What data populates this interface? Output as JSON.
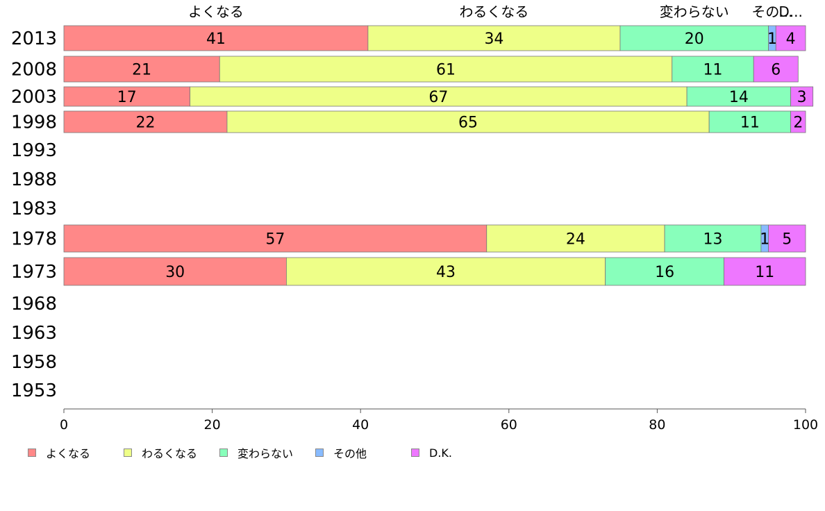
{
  "chart_data": {
    "type": "bar",
    "orientation": "horizontal",
    "stacked": true,
    "categories": [
      "2013",
      "2008",
      "2003",
      "1998",
      "1993",
      "1988",
      "1983",
      "1978",
      "1973",
      "1968",
      "1963",
      "1958",
      "1953"
    ],
    "series": [
      {
        "name": "よくなる",
        "color": "#FF8888",
        "values": [
          41,
          21,
          17,
          22,
          null,
          null,
          null,
          57,
          30,
          null,
          null,
          null,
          null
        ]
      },
      {
        "name": "わるくなる",
        "color": "#EEFF88",
        "values": [
          34,
          61,
          67,
          65,
          null,
          null,
          null,
          24,
          43,
          null,
          null,
          null,
          null
        ]
      },
      {
        "name": "変わらない",
        "color": "#88FFBB",
        "values": [
          20,
          11,
          14,
          11,
          null,
          null,
          null,
          13,
          16,
          null,
          null,
          null,
          null
        ]
      },
      {
        "name": "その他",
        "color": "#88BBFF",
        "values": [
          1,
          0,
          0,
          0,
          null,
          null,
          null,
          1,
          0,
          null,
          null,
          null,
          null
        ]
      },
      {
        "name": "D.K.",
        "color": "#EE77FF",
        "values": [
          4,
          6,
          3,
          2,
          null,
          null,
          null,
          5,
          11,
          null,
          null,
          null,
          null
        ]
      }
    ],
    "top_labels": [
      "よくなる",
      "わるくなる",
      "変わらない",
      "その...",
      "D..."
    ],
    "xlim": [
      0,
      100
    ],
    "xticks": [
      0,
      20,
      40,
      60,
      80,
      100
    ],
    "title": "",
    "xlabel": "",
    "ylabel": "",
    "grid": false,
    "legend": "bottom-left"
  },
  "legend": {
    "items": [
      "よくなる",
      "わるくなる",
      "変わらない",
      "その他",
      "D.K."
    ]
  }
}
